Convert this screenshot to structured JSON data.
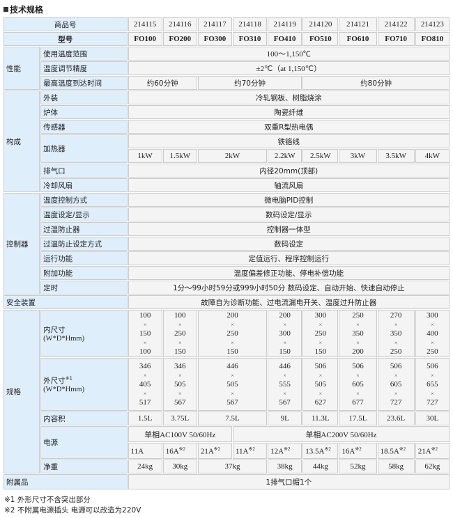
{
  "title": "技术规格",
  "header": {
    "item_no_label": "商品号",
    "model_label": "型号",
    "item_nos": [
      "214115",
      "214116",
      "214117",
      "214118",
      "214119",
      "214120",
      "214121",
      "214122",
      "214123"
    ],
    "models": [
      "FO100",
      "FO200",
      "FO300",
      "FO310",
      "FO410",
      "FO510",
      "FO610",
      "FO710",
      "FO810"
    ]
  },
  "performance": {
    "group": "性能",
    "temp_range_label": "使用温度范围",
    "temp_range": "100～1,150℃",
    "accuracy_label": "温度调节精度",
    "accuracy": "±2℃（at 1,150℃）",
    "time_label": "最高温度到达时间",
    "times": [
      "约60分钟",
      "约70分钟",
      "约80分钟"
    ]
  },
  "construction": {
    "group": "构成",
    "exterior_label": "外装",
    "exterior": "冷轧钢板、树脂烧涂",
    "body_label": "炉体",
    "body": "陶瓷纤维",
    "sensor_label": "传感器",
    "sensor": "双重R型热电偶",
    "heater_label": "加热器",
    "heater": "铁铬线",
    "heater_power": [
      "1kW",
      "1.5kW",
      "2kW",
      "2.2kW",
      "2.5kW",
      "3kW",
      "3.5kW",
      "4kW"
    ],
    "vent_label": "排气口",
    "vent": "内径20mm(顶部)",
    "fan_label": "冷却风扇",
    "fan": "轴流风扇"
  },
  "controller": {
    "group": "控制器",
    "rows": [
      {
        "label": "温度控制方式",
        "value": "微电脑PID控制"
      },
      {
        "label": "温度设定/显示",
        "value": "数码设定/显示"
      },
      {
        "label": "过温防止器",
        "value": "控制器一体型"
      },
      {
        "label": "过温防止设定方式",
        "value": "数码设定"
      },
      {
        "label": "运行功能",
        "value": "定值运行、程序控制运行"
      },
      {
        "label": "附加功能",
        "value": "温度偏差修正功能、停电补偿功能"
      },
      {
        "label": "定时",
        "value": "1分～99小时59分或999小时50分  数码设定、自动开始、快速自动停止"
      }
    ]
  },
  "safety": {
    "label": "安全装置",
    "value": "故障自为诊断功能、过电流漏电开关、温度过升防止器"
  },
  "spec": {
    "group": "规格",
    "inner_label": "内尺寸",
    "inner_unit": "(W*D*Hmm)",
    "inner": [
      [
        "100",
        "150",
        "100"
      ],
      [
        "100",
        "250",
        "150"
      ],
      [
        "200",
        "250",
        "150"
      ],
      [
        "200",
        "300",
        "150"
      ],
      [
        "300",
        "250",
        "150"
      ],
      [
        "250",
        "350",
        "200"
      ],
      [
        "270",
        "350",
        "250"
      ],
      [
        "300",
        "400",
        "250"
      ]
    ],
    "outer_label": "外尺寸",
    "outer_note": "※1",
    "outer_unit": "(W*D*Hmm)",
    "outer": [
      [
        "346",
        "405",
        "517"
      ],
      [
        "346",
        "505",
        "567"
      ],
      [
        "446",
        "505",
        "567"
      ],
      [
        "446",
        "555",
        "567"
      ],
      [
        "506",
        "505",
        "627"
      ],
      [
        "506",
        "605",
        "677"
      ],
      [
        "506",
        "605",
        "727"
      ],
      [
        "506",
        "655",
        "727"
      ]
    ],
    "times_sign": "×",
    "volume_label": "内容积",
    "volumes": [
      "1.5L",
      "3.75L",
      "7.5L",
      "9L",
      "11.3L",
      "17.5L",
      "23.6L",
      "30L"
    ],
    "power_label": "电源",
    "power_100": "单相AC100V 50/60Hz",
    "power_200": "单相AC200V 50/60Hz",
    "currents": [
      {
        "v": "11A",
        "n": ""
      },
      {
        "v": "16A",
        "n": "※2"
      },
      {
        "v": "21A",
        "n": "※2"
      },
      {
        "v": "11A",
        "n": "※2"
      },
      {
        "v": "12A",
        "n": "※2"
      },
      {
        "v": "13.5A",
        "n": "※2"
      },
      {
        "v": "16A",
        "n": "※2"
      },
      {
        "v": "18.5A",
        "n": "※2"
      },
      {
        "v": "21A",
        "n": "※2"
      }
    ],
    "weight_label": "净重",
    "weights": [
      "24kg",
      "30kg",
      "37kg",
      "38kg",
      "44kg",
      "52kg",
      "58kg",
      "62kg"
    ]
  },
  "accessory": {
    "label": "附属品",
    "value": "1排气口帽1个"
  },
  "notes": [
    "※1 外形尺寸不含突出部分",
    "※2 不附属电源插头  电源可以改造为220V"
  ]
}
